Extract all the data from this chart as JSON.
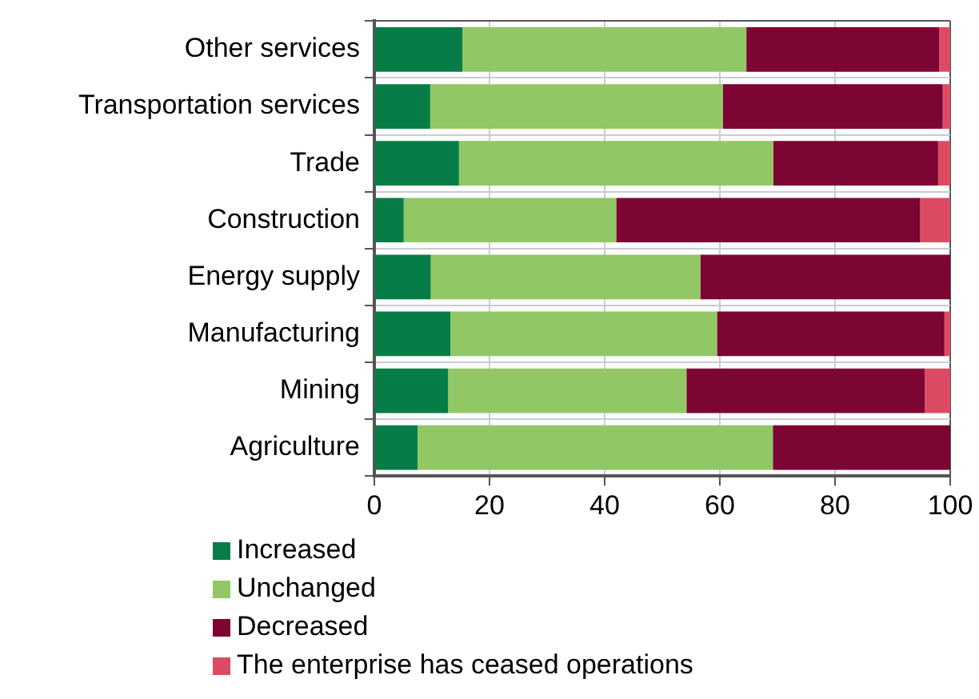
{
  "chart_data": {
    "type": "bar",
    "orientation": "horizontal",
    "stacked": true,
    "categories": [
      "Other services",
      "Transportation services",
      "Trade",
      "Construction",
      "Energy supply",
      "Manufacturing",
      "Mining",
      "Agriculture"
    ],
    "series": [
      {
        "name": "Increased",
        "color": "#067d46",
        "values": [
          15.3,
          9.7,
          14.7,
          5.1,
          9.8,
          13.2,
          12.8,
          7.5
        ]
      },
      {
        "name": "Unchanged",
        "color": "#92c765",
        "values": [
          49.3,
          50.8,
          54.6,
          36.9,
          46.8,
          46.3,
          41.4,
          61.7
        ]
      },
      {
        "name": "Decreased",
        "color": "#7d0533",
        "values": [
          33.5,
          38.2,
          28.6,
          52.8,
          43.4,
          39.5,
          41.4,
          30.8
        ]
      },
      {
        "name": "The enterprise has ceased operations",
        "color": "#dc4b63",
        "values": [
          1.9,
          1.3,
          2.1,
          5.2,
          0,
          1.0,
          4.4,
          0
        ]
      }
    ],
    "xlim": [
      0,
      100
    ],
    "xticks": [
      0,
      20,
      40,
      60,
      80,
      100
    ],
    "grid": true,
    "legend": "bottom"
  }
}
